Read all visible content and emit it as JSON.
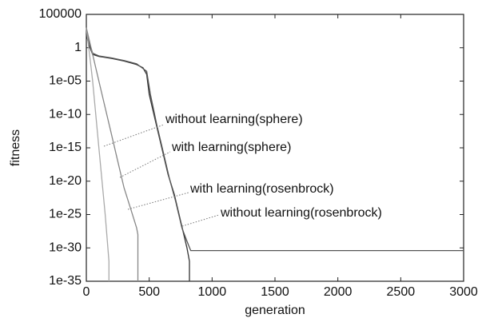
{
  "chart_data": {
    "type": "line",
    "x_label": "generation",
    "y_label": "fitness",
    "log_scale_y": true,
    "xlim": [
      0,
      3000
    ],
    "xticks": [
      0,
      500,
      1000,
      1500,
      2000,
      2500,
      3000
    ],
    "ylim": [
      1e-35,
      100000
    ],
    "yticks": [
      100000,
      1,
      {
        "value": 1e-05,
        "label": "1e-05"
      },
      {
        "value": 1e-10,
        "label": "1e-10"
      },
      {
        "value": 1e-15,
        "label": "1e-15"
      },
      {
        "value": 1e-20,
        "label": "1e-20"
      },
      {
        "value": 1e-25,
        "label": "1e-25"
      },
      {
        "value": 1e-30,
        "label": "1e-30"
      },
      {
        "value": 1e-35,
        "label": "1e-35"
      }
    ],
    "series": [
      {
        "name": "without learning(sphere)",
        "color": "#333333",
        "x": [
          0,
          20,
          50,
          100,
          200,
          300,
          400,
          450,
          480,
          500,
          550,
          600,
          650,
          700,
          750,
          800,
          820,
          820
        ],
        "values": [
          100.0,
          3.0,
          0.1,
          0.05,
          0.025,
          0.01,
          0.003,
          0.001,
          0.0001,
          1e-07,
          1e-11,
          1e-15,
          1e-19,
          1e-22,
          1e-26,
          1e-30,
          1e-32,
          1e-35
        ]
      },
      {
        "name": "without learning(rosenbrock)",
        "color": "#555555",
        "x": [
          0,
          20,
          50,
          100,
          200,
          300,
          400,
          480,
          510,
          560,
          610,
          660,
          710,
          760,
          800,
          830,
          1000,
          2000,
          3000
        ],
        "values": [
          300.0,
          10.0,
          0.15,
          0.06,
          0.03,
          0.012,
          0.004,
          0.0003,
          1e-07,
          3e-12,
          3e-16,
          3e-20,
          1e-23,
          1e-27,
          1e-29,
          4e-31,
          4e-31,
          4e-31,
          4e-31
        ]
      },
      {
        "name": "with learning(sphere)",
        "color": "#aaaaaa",
        "x": [
          0,
          20,
          50,
          100,
          150,
          180,
          180
        ],
        "values": [
          1000.0,
          1.0,
          1e-05,
          1e-15,
          1e-25,
          1e-32,
          1e-35
        ]
      },
      {
        "name": "with learning(rosenbrock)",
        "color": "#888888",
        "x": [
          0,
          50,
          100,
          150,
          200,
          250,
          300,
          350,
          400,
          410,
          410
        ],
        "values": [
          1000.0,
          0.1,
          1e-05,
          1e-09,
          1e-13,
          1e-17,
          1e-21,
          1e-24,
          1e-27,
          1e-28,
          1e-35
        ]
      }
    ]
  }
}
